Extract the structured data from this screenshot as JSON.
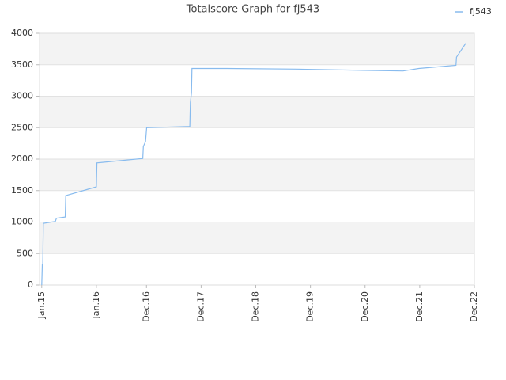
{
  "chart_data": {
    "type": "line",
    "title": "Totalscore Graph for fj543",
    "series": [
      {
        "name": "fj543",
        "color": "#88bbee",
        "x": [
          2015.0,
          2015.01,
          2015.02,
          2015.03,
          2015.25,
          2015.27,
          2015.43,
          2015.44,
          2016.0,
          2016.01,
          2016.85,
          2016.86,
          2016.9,
          2016.92,
          2017.71,
          2017.72,
          2017.74,
          2017.75,
          2018.39,
          2019.66,
          2020.89,
          2021.61,
          2021.9,
          2022.58,
          2022.59,
          2022.76
        ],
        "values": [
          0,
          330,
          330,
          980,
          1010,
          1060,
          1080,
          1420,
          1560,
          1940,
          2010,
          2200,
          2280,
          2500,
          2520,
          2900,
          3050,
          3440,
          3440,
          3430,
          3410,
          3400,
          3440,
          3490,
          3620,
          3840
        ]
      }
    ],
    "xlim": [
      2014.96,
      2022.917
    ],
    "xticks": [
      {
        "value": 2015,
        "label": "Jan.15"
      },
      {
        "value": 2016,
        "label": "Jan.16"
      },
      {
        "value": 2016.917,
        "label": "Dec.16"
      },
      {
        "value": 2017.917,
        "label": "Dec.17"
      },
      {
        "value": 2018.917,
        "label": "Dec.18"
      },
      {
        "value": 2019.917,
        "label": "Dec.19"
      },
      {
        "value": 2020.917,
        "label": "Dec.20"
      },
      {
        "value": 2021.917,
        "label": "Dec.21"
      },
      {
        "value": 2022.917,
        "label": "Dec.22"
      }
    ],
    "ylim": [
      0,
      4000
    ],
    "yticks": [
      0,
      500,
      1000,
      1500,
      2000,
      2500,
      3000,
      3500,
      4000
    ],
    "grid": true,
    "legend": "top-right"
  }
}
